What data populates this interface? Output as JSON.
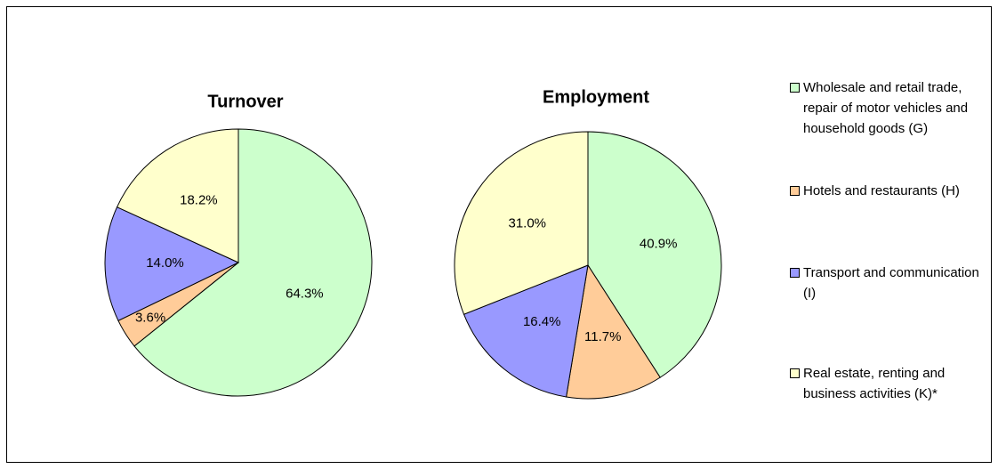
{
  "chart_data": [
    {
      "type": "pie",
      "title": "Turnover",
      "categories": [
        "Wholesale and retail trade, repair of motor vehicles and household goods (G)",
        "Hotels and restaurants (H)",
        "Transport and communication (I)",
        "Real estate, renting and business activities (K)*"
      ],
      "values": [
        64.3,
        3.6,
        14.0,
        18.2
      ],
      "value_labels": [
        "64.3%",
        "3.6%",
        "14.0%",
        "18.2%"
      ],
      "colors": [
        "#ccffcc",
        "#ffcc99",
        "#9999ff",
        "#ffffcc"
      ]
    },
    {
      "type": "pie",
      "title": "Employment",
      "values": [
        40.9,
        11.7,
        16.4,
        31.0
      ],
      "value_labels": [
        "40.9%",
        "11.7%",
        "16.4%",
        "31.0%"
      ],
      "colors": [
        "#ccffcc",
        "#ffcc99",
        "#9999ff",
        "#ffffcc"
      ]
    }
  ]
}
